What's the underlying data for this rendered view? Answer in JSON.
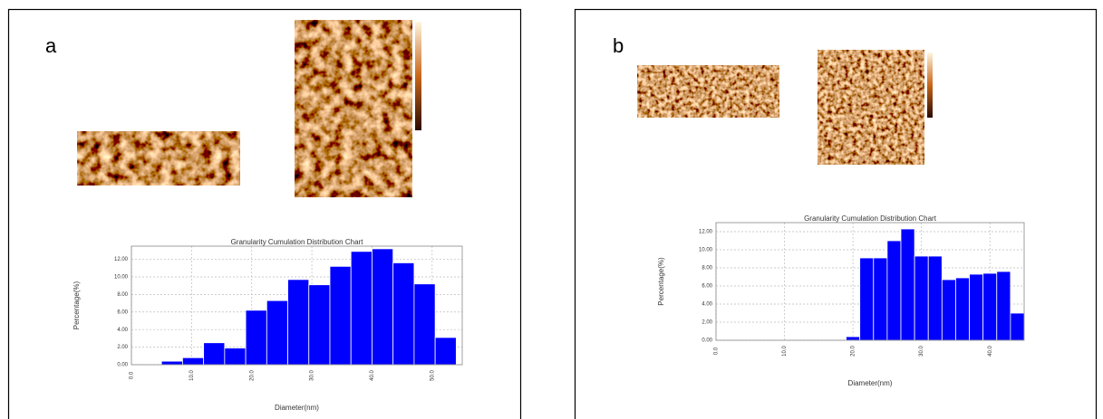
{
  "chart_data": [
    {
      "type": "histogram",
      "label": "a",
      "title": "Granularity Cumulation Distribution Chart",
      "xlabel": "Diameter(nm)",
      "ylabel": "Percentage(%)",
      "color": "#0000ff",
      "grid": true,
      "bins": [
        5,
        8.5,
        12,
        15.5,
        19,
        22.5,
        26,
        29.5,
        33,
        36.5,
        40,
        43.5,
        47,
        50.5,
        54
      ],
      "values": [
        0.4,
        0.8,
        2.5,
        1.9,
        6.2,
        7.3,
        9.7,
        9.1,
        11.2,
        12.9,
        13.2,
        11.6,
        9.2,
        3.1
      ],
      "xlim": [
        0,
        55
      ],
      "xticks": [
        {
          "value": 0,
          "label": "0.0"
        },
        {
          "value": 10,
          "label": "10.0"
        },
        {
          "value": 20,
          "label": "20.0"
        },
        {
          "value": 30,
          "label": "30.0"
        },
        {
          "value": 40,
          "label": "40.0"
        },
        {
          "value": 50,
          "label": "50.0"
        }
      ],
      "ylim": [
        0,
        13.5
      ],
      "yticks": [
        {
          "value": 0,
          "label": "0.00"
        },
        {
          "value": 2,
          "label": "2.00"
        },
        {
          "value": 4,
          "label": "4.00"
        },
        {
          "value": 6,
          "label": "6.00"
        },
        {
          "value": 8,
          "label": "8.00"
        },
        {
          "value": 10,
          "label": "10.00"
        },
        {
          "value": 12,
          "label": "12.00"
        }
      ]
    },
    {
      "type": "histogram",
      "label": "b",
      "title": "Granularity Cumulation Distribution Chart",
      "xlabel": "Diameter(nm)",
      "ylabel": "Percentage(%)",
      "color": "#0000ff",
      "grid": true,
      "bins": [
        19,
        21,
        23,
        25,
        27,
        29,
        31,
        33,
        35,
        37,
        39,
        41,
        43,
        45
      ],
      "values": [
        0.4,
        9.1,
        9.1,
        11.0,
        12.3,
        9.3,
        9.3,
        6.7,
        6.9,
        7.3,
        7.4,
        7.6,
        3.0
      ],
      "xlim": [
        0,
        45
      ],
      "xticks": [
        {
          "value": 0,
          "label": "0.0"
        },
        {
          "value": 10,
          "label": "10.0"
        },
        {
          "value": 20,
          "label": "20.0"
        },
        {
          "value": 30,
          "label": "30.0"
        },
        {
          "value": 40,
          "label": "40.0"
        }
      ],
      "ylim": [
        0,
        13
      ],
      "yticks": [
        {
          "value": 0,
          "label": "0.00"
        },
        {
          "value": 2,
          "label": "2.00"
        },
        {
          "value": 4,
          "label": "4.00"
        },
        {
          "value": 6,
          "label": "6.00"
        },
        {
          "value": 8,
          "label": "8.00"
        },
        {
          "value": 10,
          "label": "10.00"
        },
        {
          "value": 12,
          "label": "12.00"
        }
      ]
    }
  ]
}
